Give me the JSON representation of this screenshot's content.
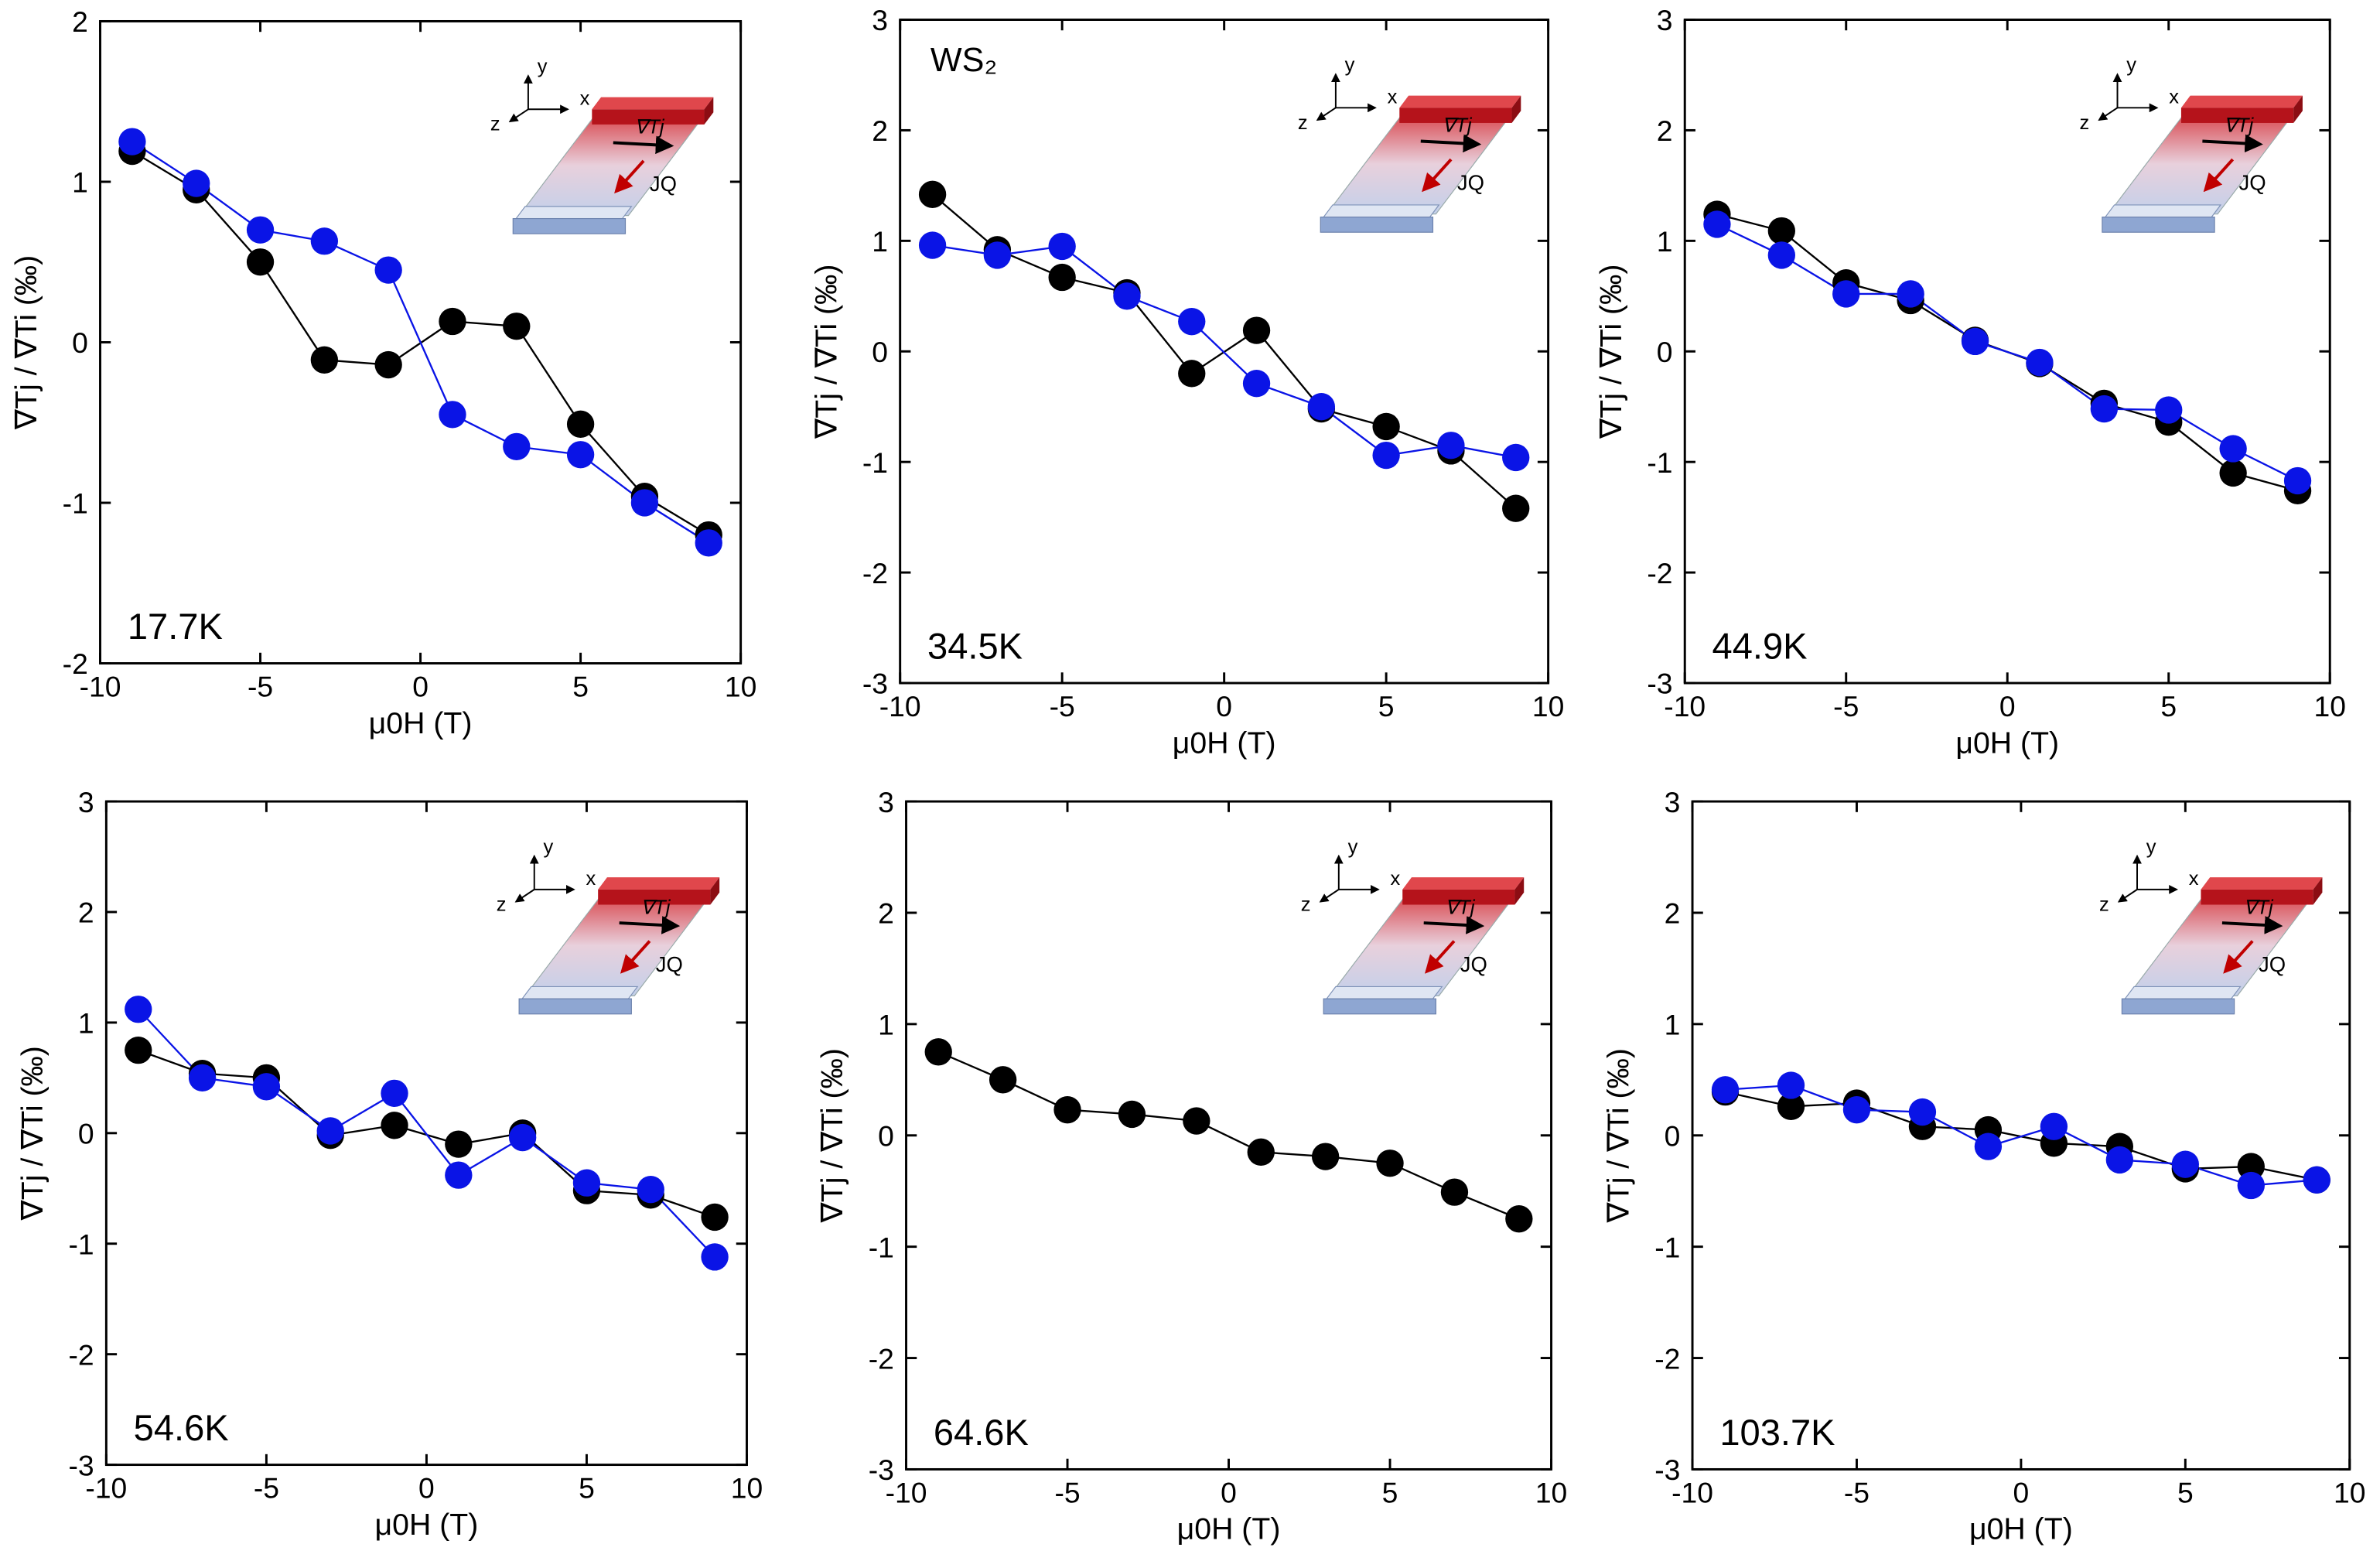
{
  "chart_data": [
    {
      "type": "line",
      "annotation": "17.7K",
      "x_label": "μ0H (T)",
      "y_label": "∇Tj / ∇Ti (‰)",
      "inset": {
        "axes": [
          "x",
          "y",
          "z"
        ],
        "gradient": "∇Tj",
        "flux": "JQ"
      },
      "x": [
        -9,
        -7,
        -5,
        -3,
        -1,
        1,
        3,
        5,
        7,
        9
      ],
      "xlim": [
        -10,
        10
      ],
      "xticks": [
        -10,
        -5,
        0,
        5,
        10
      ],
      "ylim": [
        -2,
        2
      ],
      "yticks": [
        -2,
        -1,
        0,
        1,
        2
      ],
      "series": [
        {
          "color": "#000000",
          "values": [
            1.19,
            0.95,
            0.5,
            -0.11,
            -0.14,
            0.13,
            0.1,
            -0.51,
            -0.96,
            -1.2
          ]
        },
        {
          "color": "#0a14e6",
          "values": [
            1.25,
            0.99,
            0.7,
            0.63,
            0.45,
            -0.45,
            -0.65,
            -0.7,
            -1.0,
            -1.25
          ]
        }
      ]
    },
    {
      "type": "line",
      "annotation": "34.5K",
      "label": "WS₂",
      "x_label": "μ0H (T)",
      "y_label": "∇Tj / ∇Ti (‰)",
      "inset": {
        "axes": [
          "x",
          "y",
          "z"
        ],
        "gradient": "∇Tj",
        "flux": "JQ"
      },
      "x": [
        -9,
        -7,
        -5,
        -3,
        -1,
        1,
        3,
        5,
        7,
        9
      ],
      "xlim": [
        -10,
        10
      ],
      "xticks": [
        -10,
        -5,
        0,
        5,
        10
      ],
      "ylim": [
        -3,
        3
      ],
      "yticks": [
        -3,
        -2,
        -1,
        0,
        1,
        2,
        3
      ],
      "series": [
        {
          "color": "#000000",
          "values": [
            1.42,
            0.92,
            0.67,
            0.53,
            -0.2,
            0.19,
            -0.52,
            -0.68,
            -0.9,
            -1.42
          ]
        },
        {
          "color": "#0a14e6",
          "values": [
            0.96,
            0.87,
            0.95,
            0.5,
            0.27,
            -0.29,
            -0.5,
            -0.94,
            -0.85,
            -0.96
          ]
        }
      ]
    },
    {
      "type": "line",
      "annotation": "44.9K",
      "x_label": "μ0H (T)",
      "y_label": "∇Tj / ∇Ti (‰)",
      "inset": {
        "axes": [
          "x",
          "y",
          "z"
        ],
        "gradient": "∇Tj",
        "flux": "JQ"
      },
      "x": [
        -9,
        -7,
        -5,
        -3,
        -1,
        1,
        3,
        5,
        7,
        9
      ],
      "xlim": [
        -10,
        10
      ],
      "xticks": [
        -10,
        -5,
        0,
        5,
        10
      ],
      "ylim": [
        -3,
        3
      ],
      "yticks": [
        -3,
        -2,
        -1,
        0,
        1,
        2,
        3
      ],
      "series": [
        {
          "color": "#000000",
          "values": [
            1.24,
            1.09,
            0.62,
            0.46,
            0.1,
            -0.11,
            -0.47,
            -0.64,
            -1.1,
            -1.26
          ]
        },
        {
          "color": "#0a14e6",
          "values": [
            1.15,
            0.87,
            0.52,
            0.52,
            0.09,
            -0.1,
            -0.52,
            -0.53,
            -0.88,
            -1.17
          ]
        }
      ]
    },
    {
      "type": "line",
      "annotation": "54.6K",
      "x_label": "μ0H (T)",
      "y_label": "∇Tj / ∇Ti (‰)",
      "inset": {
        "axes": [
          "x",
          "y",
          "z"
        ],
        "gradient": "∇Tj",
        "flux": "JQ"
      },
      "x": [
        -9,
        -7,
        -5,
        -3,
        -1,
        1,
        3,
        5,
        7,
        9
      ],
      "xlim": [
        -10,
        10
      ],
      "xticks": [
        -10,
        -5,
        0,
        5,
        10
      ],
      "ylim": [
        -3,
        3
      ],
      "yticks": [
        -3,
        -2,
        -1,
        0,
        1,
        2,
        3
      ],
      "series": [
        {
          "color": "#000000",
          "values": [
            0.75,
            0.54,
            0.5,
            -0.02,
            0.07,
            -0.1,
            0.0,
            -0.52,
            -0.56,
            -0.76
          ]
        },
        {
          "color": "#0a14e6",
          "values": [
            1.12,
            0.5,
            0.42,
            0.02,
            0.36,
            -0.38,
            -0.04,
            -0.45,
            -0.51,
            -1.12
          ]
        }
      ]
    },
    {
      "type": "line",
      "annotation": "64.6K",
      "x_label": "μ0H (T)",
      "y_label": "∇Tj / ∇Ti (‰)",
      "inset": {
        "axes": [
          "x",
          "y",
          "z"
        ],
        "gradient": "∇Tj",
        "flux": "JQ"
      },
      "x": [
        -9,
        -7,
        -5,
        -3,
        -1,
        1,
        3,
        5,
        7,
        9
      ],
      "xlim": [
        -10,
        10
      ],
      "xticks": [
        -10,
        -5,
        0,
        5,
        10
      ],
      "ylim": [
        -3,
        3
      ],
      "yticks": [
        -3,
        -2,
        -1,
        0,
        1,
        2,
        3
      ],
      "series": [
        {
          "color": "#000000",
          "values": [
            0.75,
            0.5,
            0.23,
            0.19,
            0.13,
            -0.15,
            -0.19,
            -0.25,
            -0.51,
            -0.75
          ]
        }
      ]
    },
    {
      "type": "line",
      "annotation": "103.7K",
      "x_label": "μ0H (T)",
      "y_label": "∇Tj / ∇Ti (‰)",
      "inset": {
        "axes": [
          "x",
          "y",
          "z"
        ],
        "gradient": "∇Tj",
        "flux": "JQ"
      },
      "x": [
        -9,
        -7,
        -5,
        -3,
        -1,
        1,
        3,
        5,
        7,
        9
      ],
      "xlim": [
        -10,
        10
      ],
      "xticks": [
        -10,
        -5,
        0,
        5,
        10
      ],
      "ylim": [
        -3,
        3
      ],
      "yticks": [
        -3,
        -2,
        -1,
        0,
        1,
        2,
        3
      ],
      "series": [
        {
          "color": "#000000",
          "values": [
            0.39,
            0.26,
            0.29,
            0.08,
            0.05,
            -0.07,
            -0.1,
            -0.3,
            -0.28,
            -0.4
          ]
        },
        {
          "color": "#0a14e6",
          "values": [
            0.41,
            0.45,
            0.23,
            0.21,
            -0.1,
            0.08,
            -0.22,
            -0.26,
            -0.45,
            -0.4
          ]
        }
      ]
    }
  ]
}
